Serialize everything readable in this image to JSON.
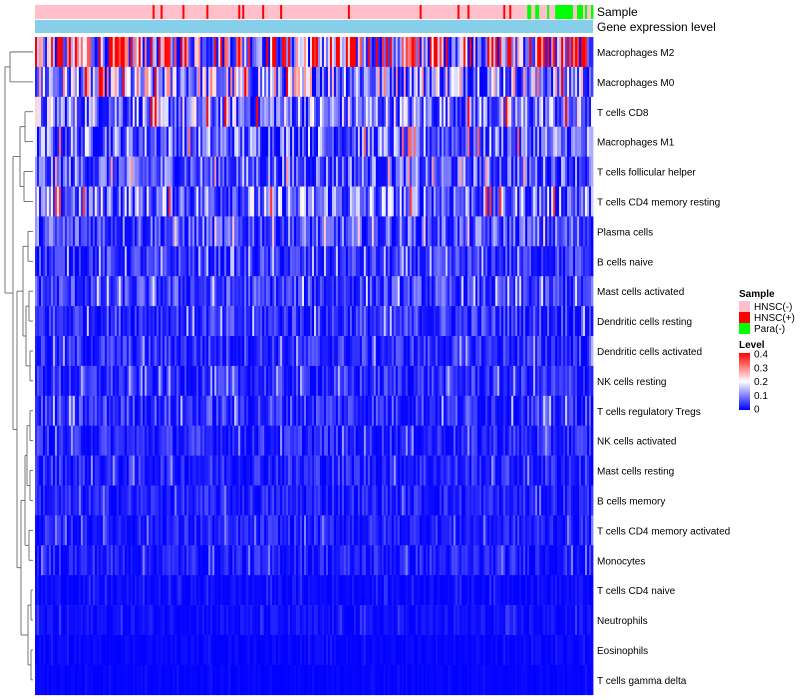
{
  "chart_data": {
    "type": "heatmap",
    "annotation_tracks": [
      "Sample",
      "Gene expression level"
    ],
    "rows": [
      {
        "name": "Macrophages M2",
        "level": 0.22
      },
      {
        "name": "Macrophages M0",
        "level": 0.13
      },
      {
        "name": "T cells CD8",
        "level": 0.1
      },
      {
        "name": "Macrophages M1",
        "level": 0.08
      },
      {
        "name": "T cells follicular helper",
        "level": 0.07
      },
      {
        "name": "T cells CD4 memory resting",
        "level": 0.09
      },
      {
        "name": "Plasma cells",
        "level": 0.06
      },
      {
        "name": "B cells naive",
        "level": 0.04
      },
      {
        "name": "Mast cells activated",
        "level": 0.045
      },
      {
        "name": "Dendritic cells resting",
        "level": 0.04
      },
      {
        "name": "Dendritic cells activated",
        "level": 0.035
      },
      {
        "name": "NK cells resting",
        "level": 0.035
      },
      {
        "name": "T cells regulatory  Tregs",
        "level": 0.04
      },
      {
        "name": "NK cells activated",
        "level": 0.03
      },
      {
        "name": "Mast cells resting",
        "level": 0.03
      },
      {
        "name": "B cells memory",
        "level": 0.025
      },
      {
        "name": "T cells CD4 memory activated",
        "level": 0.025
      },
      {
        "name": "Monocytes",
        "level": 0.025
      },
      {
        "name": "T cells CD4 naive",
        "level": 0.01
      },
      {
        "name": "Neutrophils",
        "level": 0.012
      },
      {
        "name": "Eosinophils",
        "level": 0.006
      },
      {
        "name": "T cells gamma delta",
        "level": 0.004
      }
    ],
    "sample_legend": {
      "title": "Sample",
      "items": [
        {
          "label": "HNSC(-)",
          "color": "#ffc0cb"
        },
        {
          "label": "HNSC(+)",
          "color": "#ff0000"
        },
        {
          "label": "Para(-)",
          "color": "#00ff00"
        }
      ]
    },
    "level_legend": {
      "title": "Level",
      "ticks": [
        "0.4",
        "0.3",
        "0.2",
        "0.1",
        "0"
      ],
      "range": [
        0,
        0.4
      ],
      "colors": [
        "#0000ff",
        "#ffffff",
        "#ff0000"
      ]
    },
    "expression_bar_color": "#87ceeb"
  }
}
